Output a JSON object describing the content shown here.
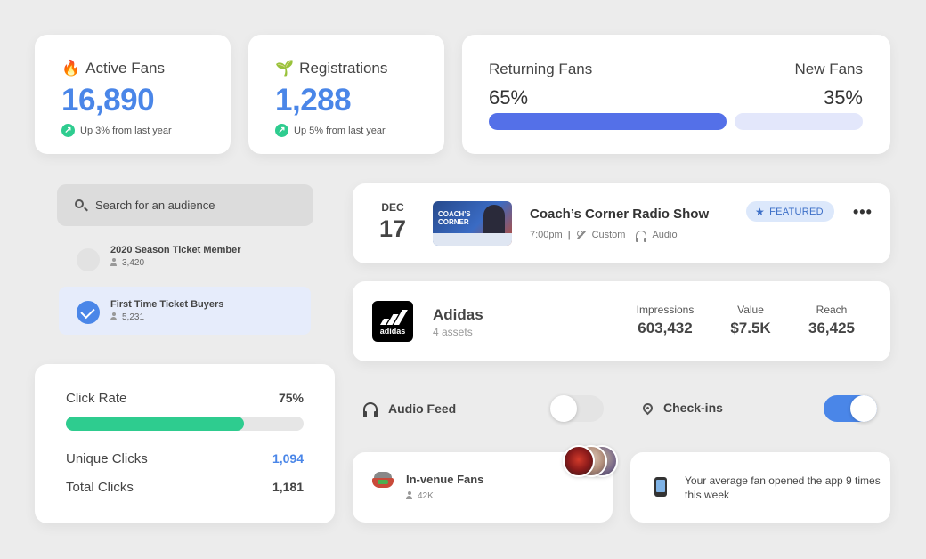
{
  "active_fans": {
    "icon": "fire-icon",
    "emoji": "🔥",
    "title": "Active Fans",
    "value": "16,890",
    "trend": "Up 3% from last year"
  },
  "registrations": {
    "icon": "sprout-icon",
    "emoji": "🌱",
    "title": "Registrations",
    "value": "1,288",
    "trend": "Up 5% from last year"
  },
  "fan_split": {
    "returning_label": "Returning Fans",
    "returning_value": "65%",
    "returning_fraction": 0.65,
    "new_label": "New Fans",
    "new_value": "35%",
    "new_fraction": 0.35,
    "returning_color": "#5470e8",
    "new_color": "#e3e7fb"
  },
  "search": {
    "placeholder": "Search for an audience"
  },
  "audiences": [
    {
      "name": "2020 Season Ticket Member",
      "count": "3,420",
      "selected": false
    },
    {
      "name": "First Time Ticket Buyers",
      "count": "5,231",
      "selected": true
    }
  ],
  "clicks": {
    "rate_label": "Click Rate",
    "rate_value": "75%",
    "rate_fraction": 0.75,
    "unique_label": "Unique Clicks",
    "unique_value": "1,094",
    "total_label": "Total Clicks",
    "total_value": "1,181"
  },
  "event": {
    "month": "DEC",
    "day": "17",
    "title": "Coach’s Corner Radio Show",
    "time": "7:00pm",
    "type": "Custom",
    "media": "Audio",
    "badge": "FEATURED",
    "thumb_text": "COACH'S CORNER",
    "more": "•••"
  },
  "sponsor": {
    "name": "Adidas",
    "assets": "4 assets",
    "logo_text": "adidas",
    "metrics": [
      {
        "label": "Impressions",
        "value": "603,432"
      },
      {
        "label": "Value",
        "value": "$7.5K"
      },
      {
        "label": "Reach",
        "value": "36,425"
      }
    ]
  },
  "toggles": {
    "audio_feed": {
      "label": "Audio Feed",
      "on": false
    },
    "check_ins": {
      "label": "Check-ins",
      "on": true
    }
  },
  "in_venue": {
    "title": "In-venue Fans",
    "count": "42K"
  },
  "notification": {
    "text": "Your average fan opened the app 9 times this week"
  },
  "colors": {
    "accent_blue": "#4a86e8",
    "green": "#2ecc8f",
    "toggle_on": "#4a86e8",
    "toggle_off": "#e4e4e4"
  }
}
